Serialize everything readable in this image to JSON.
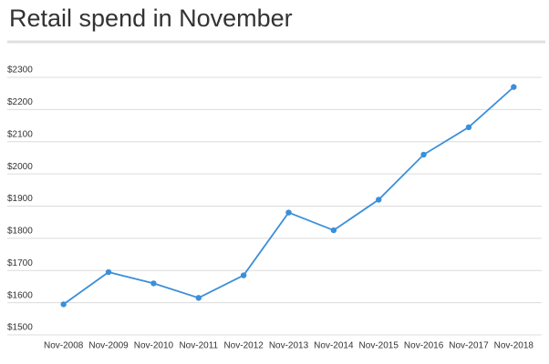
{
  "chart_data": {
    "type": "line",
    "title": "Retail spend in November",
    "categories": [
      "Nov-2008",
      "Nov-2009",
      "Nov-2010",
      "Nov-2011",
      "Nov-2012",
      "Nov-2013",
      "Nov-2014",
      "Nov-2015",
      "Nov-2016",
      "Nov-2017",
      "Nov-2018"
    ],
    "values": [
      1595,
      1695,
      1660,
      1615,
      1685,
      1880,
      1825,
      1920,
      2060,
      2145,
      2270
    ],
    "color": "#3a8fd9",
    "ylim": [
      1500,
      2300
    ],
    "yticks": [
      {
        "value": 1500,
        "label": "$1500"
      },
      {
        "value": 1600,
        "label": "$1600"
      },
      {
        "value": 1700,
        "label": "$1700"
      },
      {
        "value": 1800,
        "label": "$1800"
      },
      {
        "value": 1900,
        "label": "$1900"
      },
      {
        "value": 2000,
        "label": "$2000"
      },
      {
        "value": 2100,
        "label": "$2100"
      },
      {
        "value": 2200,
        "label": "$2200"
      },
      {
        "value": 2300,
        "label": "$2300"
      }
    ],
    "grid": true
  }
}
